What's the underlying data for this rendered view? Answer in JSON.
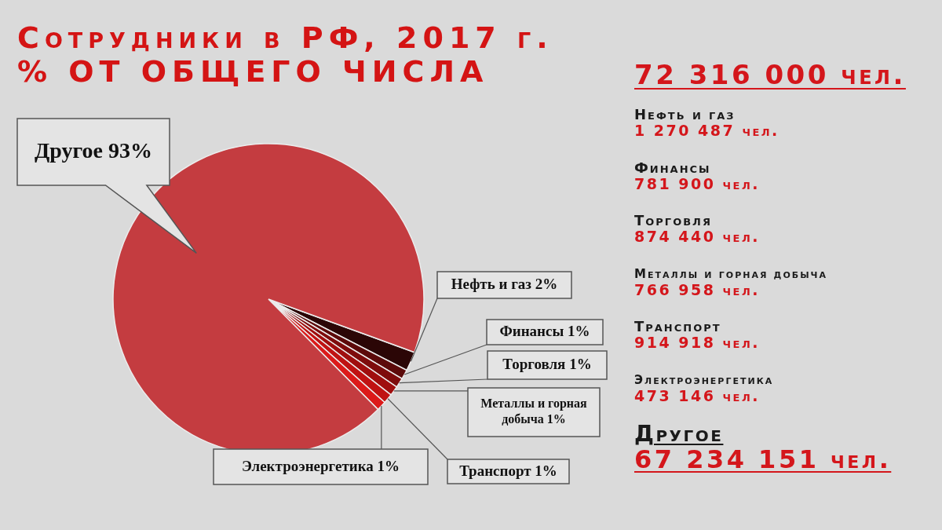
{
  "chart_data": [
    {
      "type": "pie",
      "title": "Сотрудники в РФ, 2017 г.",
      "subtitle": "% ОТ ОБЩЕГО ЧИСЛА",
      "categories": [
        "Нефть и газ",
        "Финансы",
        "Торговля",
        "Металлы и горная добыча",
        "Транспорт",
        "Электроэнергетика",
        "Другое"
      ],
      "values": [
        2,
        1,
        1,
        1,
        1,
        1,
        93
      ],
      "value_labels": [
        "2%",
        "1%",
        "1%",
        "1%",
        "1%",
        "1%",
        "93%"
      ],
      "colors": [
        "#2b0606",
        "#5c0a0a",
        "#7e0c0c",
        "#a00e0e",
        "#c01313",
        "#dc1a1a",
        "#c43c40"
      ]
    },
    {
      "type": "other",
      "annotations": [
        "72 316 000 чел.",
        "Нефть и газ",
        "1 270 487 чел.",
        "Финансы",
        "781 900 чел.",
        "Торговля",
        "874 440 чел.",
        "Металлы и горная добыча",
        "766 958 чел.",
        "Транспорт",
        "914 918 чел.",
        "Электроэнергетика",
        "473 146 чел.",
        "Другое",
        "67 234 151 чел."
      ]
    }
  ]
}
